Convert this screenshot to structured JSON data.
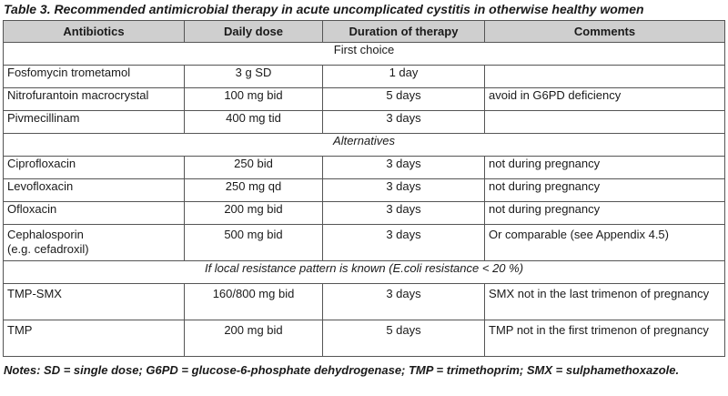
{
  "title": "Table 3. Recommended antimicrobial therapy in acute uncomplicated cystitis in otherwise healthy women",
  "headers": [
    "Antibiotics",
    "Daily dose",
    "Duration of therapy",
    "Comments"
  ],
  "section_first": "First choice",
  "first_rows": [
    {
      "antibiotic": "Fosfomycin trometamol",
      "dose": "3 g SD",
      "duration": "1 day",
      "comment": ""
    },
    {
      "antibiotic": "Nitrofurantoin macrocrystal",
      "dose": "100 mg bid",
      "duration": "5 days",
      "comment": "avoid in G6PD deficiency"
    },
    {
      "antibiotic": "Pivmecillinam",
      "dose": "400 mg tid",
      "duration": "3 days",
      "comment": ""
    }
  ],
  "section_alternatives": "Alternatives",
  "alt_rows": [
    {
      "antibiotic": "Ciprofloxacin",
      "dose": "250 bid",
      "duration": "3 days",
      "comment": "not during pregnancy"
    },
    {
      "antibiotic": "Levofloxacin",
      "dose": "250 mg qd",
      "duration": "3 days",
      "comment": "not during pregnancy"
    },
    {
      "antibiotic": "Ofloxacin",
      "dose": "200 mg bid",
      "duration": "3 days",
      "comment": "not during pregnancy"
    }
  ],
  "cephalosporin": {
    "antibiotic": "Cephalosporin",
    "antibiotic_sub": "(e.g. cefadroxil)",
    "dose": "500 mg bid",
    "duration": "3 days",
    "comment": "Or comparable (see Appendix 4.5)"
  },
  "section_local": "If local resistance pattern is known (E.coli resistance < 20 %)",
  "local_rows": [
    {
      "antibiotic": "TMP-SMX",
      "dose": "160/800 mg bid",
      "duration": "3 days",
      "comment": "SMX not in the last trimenon of pregnancy"
    },
    {
      "antibiotic": "TMP",
      "dose": "200 mg bid",
      "duration": "5 days",
      "comment": "TMP not in the first trimenon of pregnancy"
    }
  ],
  "notes": "Notes: SD = single dose; G6PD = glucose-6-phosphate dehydrogenase; TMP = trimethoprim; SMX = sulphamethoxazole."
}
